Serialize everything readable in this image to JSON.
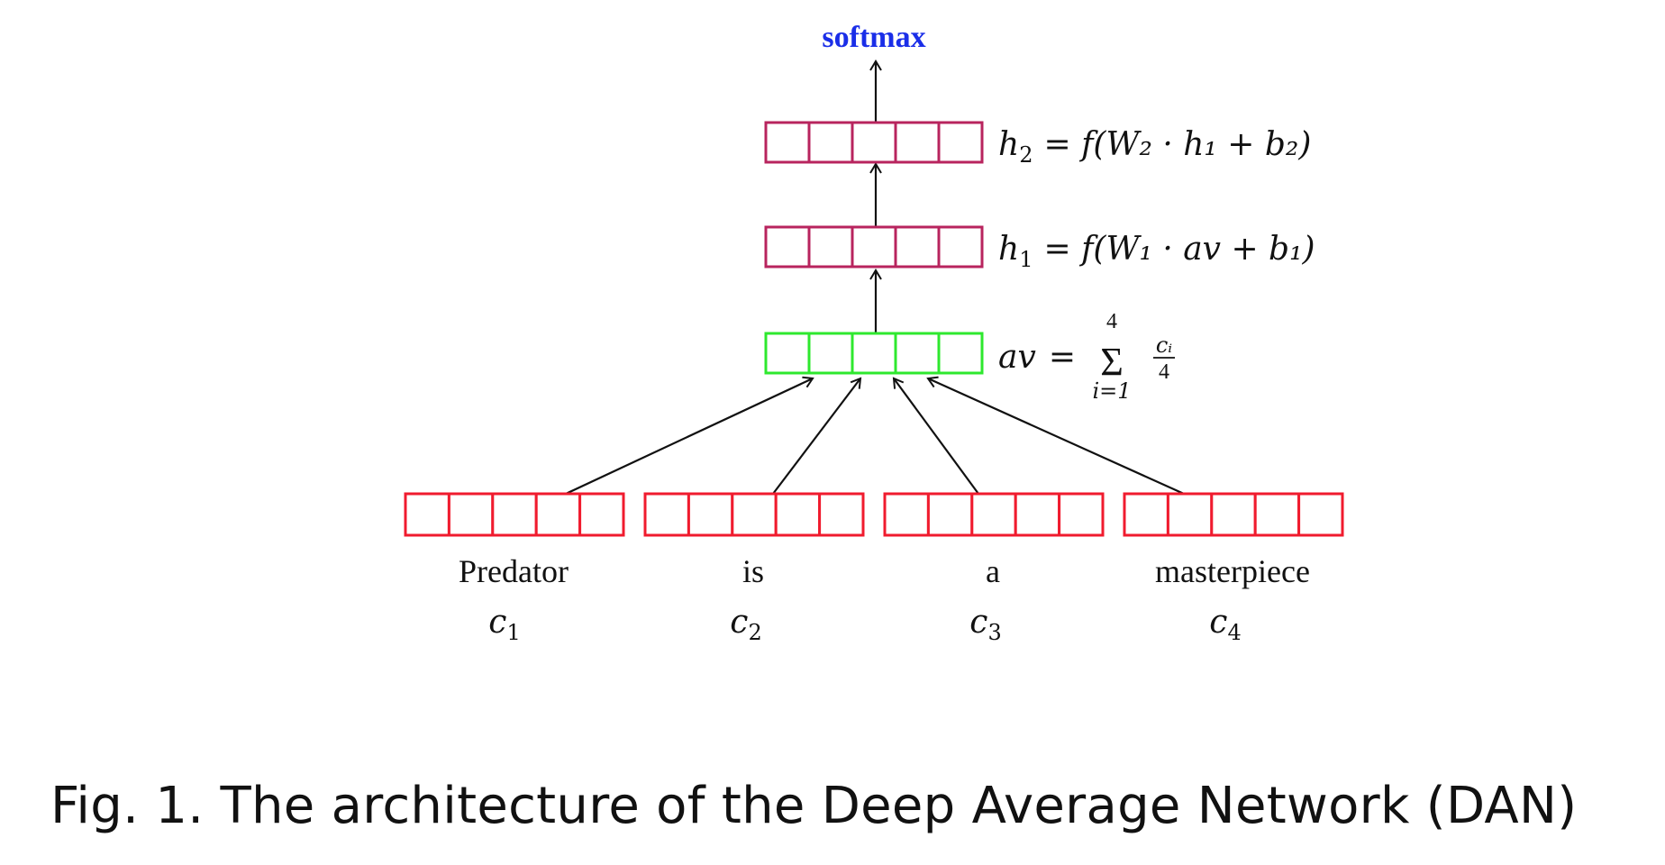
{
  "diagram": {
    "output_label": "softmax",
    "layers": [
      {
        "id": "h2",
        "equation_lhs": "h",
        "equation_sub": "2",
        "equation_rhs": "= f(W₂ · h₁ + b₂)"
      },
      {
        "id": "h1",
        "equation_lhs": "h",
        "equation_sub": "1",
        "equation_rhs": "= f(W₁ · av + b₁)"
      },
      {
        "id": "av",
        "equation_lhs": "av",
        "equation_rhs": "=",
        "sum_upper": "4",
        "sum_lower": "i=1",
        "frac_num": "cᵢ",
        "frac_den": "4"
      }
    ],
    "words": [
      {
        "word": "Predator",
        "var": "c",
        "sub": "1"
      },
      {
        "word": "is",
        "var": "c",
        "sub": "2"
      },
      {
        "word": "a",
        "var": "c",
        "sub": "3"
      },
      {
        "word": "masterpiece",
        "var": "c",
        "sub": "4"
      }
    ],
    "cells_per_vector": 5,
    "colors": {
      "hidden": "#b8245e",
      "average": "#2ee82e",
      "word": "#f01b2e",
      "softmax": "#1a2ee8",
      "arrow": "#111111"
    }
  },
  "caption": "Fig. 1.  The architecture of the Deep Average Network (DAN)"
}
